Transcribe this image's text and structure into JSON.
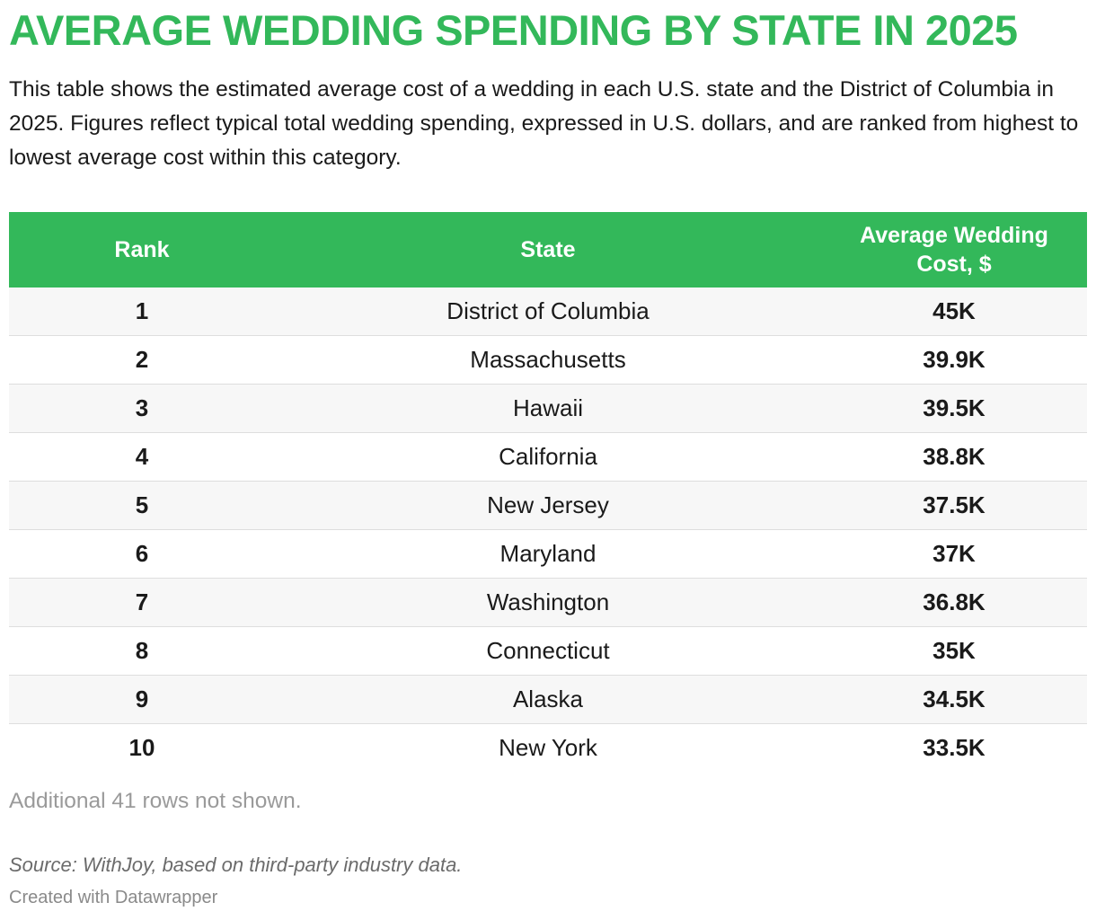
{
  "title": "AVERAGE WEDDING SPENDING BY STATE IN 2025",
  "description": "This table shows the estimated average cost of a wedding in each U.S. state and the District of Columbia in 2025. Figures reflect typical total wedding spending, expressed in U.S. dollars, and are ranked from highest to lowest average cost within this category.",
  "colors": {
    "accent": "#33b85a",
    "header_text": "#ffffff",
    "row_stripe": "#f7f7f7",
    "muted_text": "#9a9a9a"
  },
  "chart_data": {
    "type": "table",
    "title": "AVERAGE WEDDING SPENDING BY STATE IN 2025",
    "columns": [
      "Rank",
      "State",
      "Average Wedding Cost, $"
    ],
    "rows": [
      {
        "rank": "1",
        "state": "District of Columbia",
        "cost": "45K"
      },
      {
        "rank": "2",
        "state": "Massachusetts",
        "cost": "39.9K"
      },
      {
        "rank": "3",
        "state": "Hawaii",
        "cost": "39.5K"
      },
      {
        "rank": "4",
        "state": "California",
        "cost": "38.8K"
      },
      {
        "rank": "5",
        "state": "New Jersey",
        "cost": "37.5K"
      },
      {
        "rank": "6",
        "state": "Maryland",
        "cost": "37K"
      },
      {
        "rank": "7",
        "state": "Washington",
        "cost": "36.8K"
      },
      {
        "rank": "8",
        "state": "Connecticut",
        "cost": "35K"
      },
      {
        "rank": "9",
        "state": "Alaska",
        "cost": "34.5K"
      },
      {
        "rank": "10",
        "state": "New York",
        "cost": "33.5K"
      }
    ],
    "hidden_rows_note": "Additional 41 rows not shown."
  },
  "footer": {
    "source": "Source: WithJoy, based on third-party industry data.",
    "credit": "Created with Datawrapper"
  }
}
